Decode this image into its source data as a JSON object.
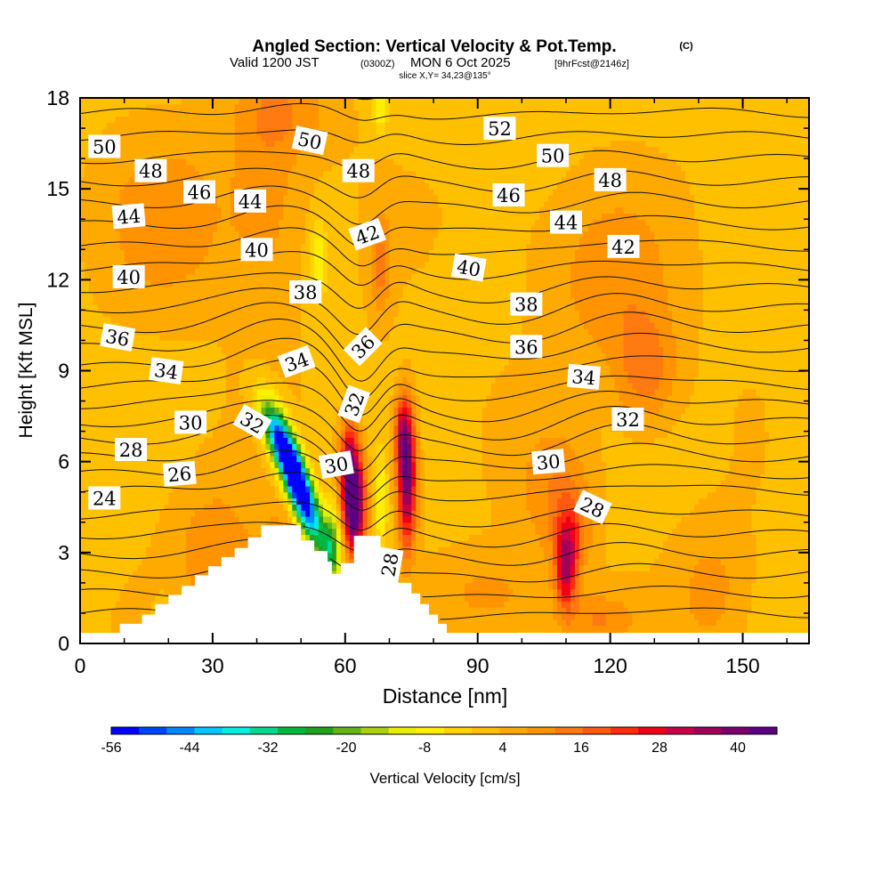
{
  "header": {
    "title": "Angled Section: Vertical Velocity & Pot.Temp.",
    "title_mark": "(C)",
    "valid_prefix": "Valid 1200 JST",
    "valid_tz": "(0300Z)",
    "valid_date": "MON 6 Oct 2025",
    "valid_fcst": "[9hrFcst@2146z]",
    "slice": "slice X,Y= 34,23@135°"
  },
  "chart_data": {
    "type": "heatmap",
    "xlabel": "Distance [nm]",
    "ylabel": "Height [Kft MSL]",
    "xlim": [
      0,
      165
    ],
    "ylim": [
      0,
      18
    ],
    "xticks": [
      "0",
      "30",
      "60",
      "90",
      "120",
      "150"
    ],
    "yticks": [
      "0",
      "3",
      "6",
      "9",
      "12",
      "15",
      "18"
    ],
    "colorbar": {
      "label": "Vertical Velocity [cm/s]",
      "tick_labels": [
        "-56",
        "-44",
        "-32",
        "-20",
        "-8",
        "4",
        "16",
        "28",
        "40"
      ],
      "range": [
        -56,
        46
      ],
      "colors": [
        "#0000ff",
        "#0044ff",
        "#0088ff",
        "#00c8ff",
        "#00f0e0",
        "#00d890",
        "#00b840",
        "#22a020",
        "#66b414",
        "#aad010",
        "#e8f000",
        "#ffee00",
        "#ffd400",
        "#ffc000",
        "#ffaa00",
        "#ff9400",
        "#ff7a10",
        "#ff5a10",
        "#ff2a10",
        "#f00018",
        "#c8004a",
        "#a0005a",
        "#7a0070",
        "#5a0080"
      ]
    },
    "terrain": [
      [
        0,
        0.35
      ],
      [
        9,
        0.35
      ],
      [
        9,
        0.65
      ],
      [
        14,
        0.65
      ],
      [
        14,
        0.95
      ],
      [
        17,
        0.95
      ],
      [
        17,
        1.3
      ],
      [
        20,
        1.3
      ],
      [
        20,
        1.6
      ],
      [
        23,
        1.6
      ],
      [
        23,
        1.9
      ],
      [
        26,
        1.9
      ],
      [
        26,
        2.25
      ],
      [
        29,
        2.25
      ],
      [
        29,
        2.55
      ],
      [
        32,
        2.55
      ],
      [
        32,
        2.85
      ],
      [
        35,
        2.85
      ],
      [
        35,
        3.15
      ],
      [
        38,
        3.15
      ],
      [
        38,
        3.5
      ],
      [
        41,
        3.5
      ],
      [
        41,
        3.9
      ],
      [
        50,
        3.9
      ],
      [
        50,
        3.4
      ],
      [
        53,
        3.4
      ],
      [
        53,
        3.05
      ],
      [
        56,
        3.05
      ],
      [
        56,
        2.7
      ],
      [
        57,
        2.7
      ],
      [
        57,
        2.3
      ],
      [
        59,
        2.3
      ],
      [
        59,
        2.65
      ],
      [
        62,
        2.65
      ],
      [
        62,
        3.55
      ],
      [
        68,
        3.55
      ],
      [
        68,
        2.35
      ],
      [
        72,
        2.35
      ],
      [
        72,
        2.0
      ],
      [
        75,
        2.0
      ],
      [
        75,
        1.65
      ],
      [
        77,
        1.65
      ],
      [
        77,
        1.3
      ],
      [
        79,
        1.3
      ],
      [
        79,
        0.95
      ],
      [
        81,
        0.95
      ],
      [
        81,
        0.65
      ],
      [
        83,
        0.65
      ],
      [
        83,
        0.35
      ],
      [
        165,
        0.35
      ]
    ],
    "vertical_velocity_features": [
      {
        "x": 50,
        "y": 5.0,
        "sx": 2.0,
        "sy": 1.3,
        "value": -55,
        "tilt": -0.55
      },
      {
        "x": 47,
        "y": 6.2,
        "sx": 2.2,
        "sy": 1.2,
        "value": -30,
        "tilt": -0.55
      },
      {
        "x": 44,
        "y": 6.9,
        "sx": 2.0,
        "sy": 0.8,
        "value": -20,
        "tilt": -0.55
      },
      {
        "x": 57,
        "y": 3.2,
        "sx": 1.6,
        "sy": 0.9,
        "value": -25,
        "tilt": 0
      },
      {
        "x": 62,
        "y": 4.5,
        "sx": 1.8,
        "sy": 1.1,
        "value": 46,
        "tilt": 0
      },
      {
        "x": 61,
        "y": 6.0,
        "sx": 1.6,
        "sy": 1.0,
        "value": 25,
        "tilt": 0
      },
      {
        "x": 74,
        "y": 5.4,
        "sx": 1.5,
        "sy": 1.5,
        "value": 38,
        "tilt": 0
      },
      {
        "x": 73,
        "y": 7.0,
        "sx": 1.4,
        "sy": 0.9,
        "value": 20,
        "tilt": 0
      },
      {
        "x": 68,
        "y": 4.6,
        "sx": 1.0,
        "sy": 1.1,
        "value": -12,
        "tilt": 0
      },
      {
        "x": 110,
        "y": 2.4,
        "sx": 1.6,
        "sy": 0.9,
        "value": 26,
        "tilt": 0
      },
      {
        "x": 111,
        "y": 3.6,
        "sx": 2.6,
        "sy": 0.9,
        "value": 14,
        "tilt": 0
      },
      {
        "x": 108,
        "y": 5.0,
        "sx": 6.0,
        "sy": 1.5,
        "value": 9,
        "tilt": 0
      },
      {
        "x": 45,
        "y": 2.4,
        "sx": 3.0,
        "sy": 1.2,
        "value": 12,
        "tilt": 0
      },
      {
        "x": 30,
        "y": 3.0,
        "sx": 7.0,
        "sy": 1.8,
        "value": 8,
        "tilt": 0
      },
      {
        "x": 20,
        "y": 1.2,
        "sx": 3.0,
        "sy": 1.0,
        "value": -2,
        "tilt": 0
      },
      {
        "x": 36,
        "y": 1.5,
        "sx": 3.0,
        "sy": 1.0,
        "value": 9,
        "tilt": 0
      },
      {
        "x": 93,
        "y": 1.6,
        "sx": 9.0,
        "sy": 1.0,
        "value": 7,
        "tilt": 0
      },
      {
        "x": 117,
        "y": 0.8,
        "sx": 6.0,
        "sy": 0.6,
        "value": 9,
        "tilt": 0
      },
      {
        "x": 143,
        "y": 1.7,
        "sx": 6.0,
        "sy": 1.6,
        "value": 7,
        "tilt": 0
      },
      {
        "x": 120,
        "y": 12.0,
        "sx": 10.0,
        "sy": 2.0,
        "value": 8,
        "tilt": 0
      },
      {
        "x": 128,
        "y": 9.0,
        "sx": 5.0,
        "sy": 1.3,
        "value": 12,
        "tilt": 0
      },
      {
        "x": 20,
        "y": 14.0,
        "sx": 10.0,
        "sy": 2.0,
        "value": 8,
        "tilt": 0
      },
      {
        "x": 42,
        "y": 15.0,
        "sx": 6.0,
        "sy": 3.0,
        "value": 8,
        "tilt": 0
      },
      {
        "x": 54,
        "y": 12.6,
        "sx": 1.5,
        "sy": 0.9,
        "value": -12,
        "tilt": 0
      },
      {
        "x": 68,
        "y": 12.5,
        "sx": 1.8,
        "sy": 1.3,
        "value": 10,
        "tilt": 0
      },
      {
        "x": 68,
        "y": 17.6,
        "sx": 1.2,
        "sy": 0.6,
        "value": -10,
        "tilt": 0
      },
      {
        "x": 48,
        "y": 17.5,
        "sx": 8.0,
        "sy": 1.0,
        "value": 6,
        "tilt": 0
      },
      {
        "x": 95,
        "y": 14.5,
        "sx": 8.0,
        "sy": 2.0,
        "value": 2,
        "tilt": 0
      },
      {
        "x": 162,
        "y": 10.0,
        "sx": 4.0,
        "sy": 8.0,
        "value": -2,
        "tilt": 0
      },
      {
        "x": 90,
        "y": 8.0,
        "sx": 6.0,
        "sy": 2.0,
        "value": 0,
        "tilt": 0
      }
    ],
    "theta_contours": {
      "levels_label": "Pot.Temp. (C)",
      "min": 22,
      "max": 53,
      "step": 1,
      "labels": [
        {
          "text": "50",
          "x": 5.5,
          "y": 16.4,
          "angle": 0
        },
        {
          "text": "48",
          "x": 16,
          "y": 15.6,
          "angle": 0
        },
        {
          "text": "46",
          "x": 27,
          "y": 14.9,
          "angle": 0
        },
        {
          "text": "44",
          "x": 11,
          "y": 14.1,
          "angle": -5
        },
        {
          "text": "40",
          "x": 11,
          "y": 12.1,
          "angle": 0
        },
        {
          "text": "36",
          "x": 8.5,
          "y": 10.1,
          "angle": 10
        },
        {
          "text": "34",
          "x": 19.5,
          "y": 9.0,
          "angle": 8
        },
        {
          "text": "30",
          "x": 25,
          "y": 7.3,
          "angle": 0
        },
        {
          "text": "28",
          "x": 11.5,
          "y": 6.4,
          "angle": 0
        },
        {
          "text": "26",
          "x": 22.5,
          "y": 5.6,
          "angle": -5
        },
        {
          "text": "24",
          "x": 5.5,
          "y": 4.8,
          "angle": 0
        },
        {
          "text": "44",
          "x": 38.5,
          "y": 14.6,
          "angle": 0
        },
        {
          "text": "40",
          "x": 40,
          "y": 13.0,
          "angle": 0
        },
        {
          "text": "50",
          "x": 52,
          "y": 16.6,
          "angle": 12
        },
        {
          "text": "48",
          "x": 63,
          "y": 15.6,
          "angle": 0
        },
        {
          "text": "42",
          "x": 65,
          "y": 13.5,
          "angle": -20
        },
        {
          "text": "38",
          "x": 51,
          "y": 11.6,
          "angle": 0
        },
        {
          "text": "34",
          "x": 49,
          "y": 9.3,
          "angle": -20
        },
        {
          "text": "36",
          "x": 64,
          "y": 9.8,
          "angle": -45
        },
        {
          "text": "32",
          "x": 39,
          "y": 7.3,
          "angle": 30
        },
        {
          "text": "32",
          "x": 62,
          "y": 7.9,
          "angle": -70
        },
        {
          "text": "30",
          "x": 58,
          "y": 5.9,
          "angle": -10
        },
        {
          "text": "28",
          "x": 70,
          "y": 2.6,
          "angle": -80
        },
        {
          "text": "52",
          "x": 95,
          "y": 17.0,
          "angle": 0
        },
        {
          "text": "50",
          "x": 107,
          "y": 16.1,
          "angle": 0
        },
        {
          "text": "48",
          "x": 120,
          "y": 15.3,
          "angle": 0
        },
        {
          "text": "46",
          "x": 97,
          "y": 14.8,
          "angle": 0
        },
        {
          "text": "44",
          "x": 110,
          "y": 13.9,
          "angle": 0
        },
        {
          "text": "42",
          "x": 123,
          "y": 13.1,
          "angle": 0
        },
        {
          "text": "40",
          "x": 88,
          "y": 12.4,
          "angle": 10
        },
        {
          "text": "38",
          "x": 101,
          "y": 11.2,
          "angle": 0
        },
        {
          "text": "36",
          "x": 101,
          "y": 9.8,
          "angle": 0
        },
        {
          "text": "34",
          "x": 114,
          "y": 8.8,
          "angle": 5
        },
        {
          "text": "32",
          "x": 124,
          "y": 7.4,
          "angle": 0
        },
        {
          "text": "30",
          "x": 106,
          "y": 6.0,
          "angle": -5
        },
        {
          "text": "28",
          "x": 116,
          "y": 4.5,
          "angle": 25
        }
      ]
    }
  }
}
